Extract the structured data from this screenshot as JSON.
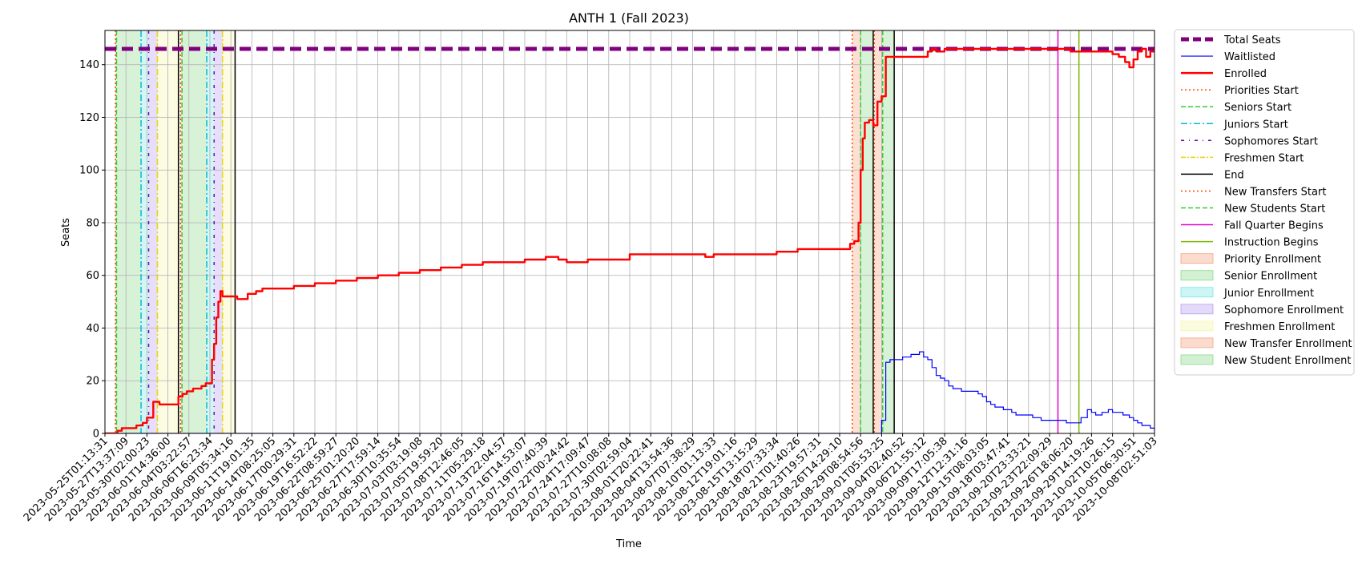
{
  "chart_data": {
    "type": "line",
    "title": "ANTH 1 (Fall 2023)",
    "xlabel": "Time",
    "ylabel": "Seats",
    "ylim": [
      0,
      153
    ],
    "yticks": [
      0,
      20,
      40,
      60,
      80,
      100,
      120,
      140
    ],
    "grid": true,
    "legend_position": "outside-right",
    "colors": {
      "total_seats": "#800080",
      "waitlisted": "#0000ff",
      "enrolled": "#ff0000",
      "priorities": "#ff4500",
      "seniors": "#32cd32",
      "juniors": "#00bcd4",
      "sophomores": "#6a0dad",
      "freshmen": "#e6d800",
      "end": "#000000",
      "fall_quarter": "#e600cc",
      "instruction": "#7cb800"
    },
    "x_tick_labels": [
      "2023-05-25T01:13:31",
      "2023-05-27T13:37:09",
      "2023-05-30T02:00:23",
      "2023-06-01T14:36:00",
      "2023-06-04T03:22:57",
      "2023-06-06T16:23:34",
      "2023-06-09T05:34:16",
      "2023-06-11T19:01:35",
      "2023-06-14T08:25:05",
      "2023-06-17T00:29:31",
      "2023-06-19T16:52:22",
      "2023-06-22T08:59:27",
      "2023-06-25T01:20:20",
      "2023-06-27T17:59:14",
      "2023-06-30T10:35:54",
      "2023-07-03T03:19:08",
      "2023-07-05T19:59:20",
      "2023-07-08T12:46:05",
      "2023-07-11T05:29:18",
      "2023-07-13T22:04:57",
      "2023-07-16T14:53:07",
      "2023-07-19T07:40:39",
      "2023-07-22T00:24:42",
      "2023-07-24T17:09:47",
      "2023-07-27T10:08:08",
      "2023-07-30T02:59:04",
      "2023-08-01T20:22:41",
      "2023-08-04T13:54:36",
      "2023-08-07T07:38:29",
      "2023-08-10T01:13:33",
      "2023-08-12T19:01:16",
      "2023-08-15T13:15:29",
      "2023-08-18T07:33:34",
      "2023-08-21T01:40:26",
      "2023-08-23T19:57:31",
      "2023-08-26T14:29:10",
      "2023-08-29T08:54:56",
      "2023-09-01T05:53:25",
      "2023-09-04T02:40:52",
      "2023-09-06T21:55:12",
      "2023-09-09T17:05:38",
      "2023-09-12T12:31:16",
      "2023-09-15T08:03:05",
      "2023-09-18T03:47:41",
      "2023-09-20T23:33:21",
      "2023-09-23T22:09:29",
      "2023-09-26T18:06:20",
      "2023-09-29T14:19:26",
      "2023-10-02T10:26:15",
      "2023-10-05T06:30:51",
      "2023-10-08T02:51:03"
    ],
    "series": [
      {
        "name": "Total Seats",
        "style": "dashed-thick",
        "x": [
          0,
          50
        ],
        "y": [
          146,
          146
        ]
      },
      {
        "name": "Waitlisted",
        "style": "step-thin",
        "x": [
          0,
          36.8,
          37.0,
          37.2,
          37.4,
          37.6,
          38.0,
          38.4,
          38.8,
          39.0,
          39.2,
          39.4,
          39.6,
          39.8,
          40.0,
          40.2,
          40.4,
          40.6,
          40.8,
          41.0,
          41.2,
          41.4,
          41.6,
          41.8,
          42.0,
          42.2,
          42.4,
          42.6,
          42.8,
          43.0,
          43.2,
          43.4,
          43.8,
          44.2,
          44.6,
          45.0,
          45.4,
          45.8,
          46.2,
          46.5,
          46.8,
          47.0,
          47.2,
          47.5,
          47.8,
          48.0,
          48.2,
          48.5,
          48.8,
          49.0,
          49.2,
          49.4,
          49.6,
          49.8,
          50.0
        ],
        "y": [
          0,
          0,
          5,
          27,
          28,
          28,
          29,
          30,
          31,
          29,
          28,
          25,
          22,
          21,
          20,
          18,
          17,
          17,
          16,
          16,
          16,
          16,
          15,
          14,
          12,
          11,
          10,
          10,
          9,
          9,
          8,
          7,
          7,
          6,
          5,
          5,
          5,
          4,
          4,
          6,
          9,
          8,
          7,
          8,
          9,
          8,
          8,
          7,
          6,
          5,
          4,
          3,
          3,
          2,
          1
        ]
      },
      {
        "name": "Enrolled",
        "style": "step-thick",
        "x": [
          0,
          0.6,
          0.8,
          1.1,
          1.5,
          1.8,
          2.0,
          2.3,
          2.4,
          2.5,
          2.6,
          2.7,
          3.0,
          3.3,
          3.5,
          3.7,
          3.9,
          4.0,
          4.1,
          4.2,
          4.4,
          4.6,
          4.8,
          5.0,
          5.1,
          5.2,
          5.3,
          5.4,
          5.5,
          5.6,
          5.75,
          5.9,
          6.0,
          6.3,
          6.8,
          7.2,
          7.5,
          8.0,
          9.0,
          10.0,
          11.0,
          12.0,
          13.0,
          14.0,
          15.0,
          16.0,
          17.0,
          18.0,
          19.0,
          20.0,
          21.0,
          21.6,
          22.0,
          23.0,
          24.0,
          25.0,
          26.0,
          27.0,
          28.0,
          28.6,
          29.0,
          30.0,
          31.0,
          32.0,
          33.0,
          34.0,
          35.0,
          35.5,
          35.7,
          35.9,
          36.0,
          36.1,
          36.2,
          36.4,
          36.6,
          36.8,
          37.0,
          37.2,
          37.4,
          37.6,
          38.0,
          38.5,
          39.0,
          39.2,
          39.4,
          39.6,
          40.0,
          41.0,
          42.0,
          43.0,
          44.0,
          45.0,
          46.0,
          47.0,
          47.5,
          48.0,
          48.3,
          48.6,
          48.8,
          49.0,
          49.2,
          49.4,
          49.6,
          49.8,
          50.0
        ],
        "y": [
          0,
          1,
          2,
          2,
          3,
          4,
          6,
          12,
          12,
          12,
          11,
          11,
          11,
          11,
          14,
          15,
          16,
          16,
          16,
          17,
          17,
          18,
          19,
          19,
          28,
          34,
          44,
          50,
          54,
          52,
          52,
          52,
          52,
          51,
          53,
          54,
          55,
          55,
          56,
          57,
          58,
          59,
          60,
          61,
          62,
          63,
          64,
          65,
          65,
          66,
          67,
          66,
          65,
          66,
          66,
          68,
          68,
          68,
          68,
          67,
          68,
          68,
          68,
          69,
          70,
          70,
          70,
          72,
          73,
          80,
          100,
          112,
          118,
          119,
          117,
          126,
          128,
          143,
          143,
          143,
          143,
          143,
          143,
          145,
          146,
          145,
          146,
          146,
          146,
          146,
          146,
          146,
          145,
          145,
          145,
          144,
          143,
          141,
          139,
          142,
          145,
          146,
          143,
          145,
          146
        ]
      }
    ],
    "vertical_lines": [
      {
        "name": "Priorities Start",
        "x": 0.5,
        "style": "dotted",
        "color": "#ff4500"
      },
      {
        "name": "Seniors Start",
        "x": 0.55,
        "style": "dashed",
        "color": "#32cd32"
      },
      {
        "name": "Juniors Start",
        "x": 1.72,
        "style": "dashdot",
        "color": "#00bcd4"
      },
      {
        "name": "Sophomores Start",
        "x": 2.08,
        "style": "dashdot-sparse",
        "color": "#6a0dad"
      },
      {
        "name": "Freshmen Start",
        "x": 2.5,
        "style": "dashdot",
        "color": "#e6d800"
      },
      {
        "name": "End",
        "x": 3.5,
        "style": "solid",
        "color": "#000000"
      },
      {
        "name": "Priorities Start",
        "x": 3.6,
        "style": "dotted",
        "color": "#ff4500"
      },
      {
        "name": "Seniors Start",
        "x": 3.67,
        "style": "dashed",
        "color": "#32cd32"
      },
      {
        "name": "Juniors Start",
        "x": 4.85,
        "style": "dashdot",
        "color": "#00bcd4"
      },
      {
        "name": "Sophomores Start",
        "x": 5.2,
        "style": "dashdot-sparse",
        "color": "#6a0dad"
      },
      {
        "name": "Freshmen Start",
        "x": 5.6,
        "style": "dashdot",
        "color": "#e6d800"
      },
      {
        "name": "End",
        "x": 6.2,
        "style": "solid",
        "color": "#000000"
      },
      {
        "name": "New Transfers Start",
        "x": 35.6,
        "style": "dotted",
        "color": "#ff4500"
      },
      {
        "name": "New Students Start",
        "x": 36.0,
        "style": "dashed",
        "color": "#32cd32"
      },
      {
        "name": "End",
        "x": 36.6,
        "style": "solid",
        "color": "#000000"
      },
      {
        "name": "New Transfers Start",
        "x": 36.65,
        "style": "dotted",
        "color": "#ff4500"
      },
      {
        "name": "New Students Start",
        "x": 37.05,
        "style": "dashed",
        "color": "#32cd32"
      },
      {
        "name": "End",
        "x": 37.6,
        "style": "solid",
        "color": "#000000"
      },
      {
        "name": "Fall Quarter Begins",
        "x": 45.4,
        "style": "solid",
        "color": "#e600cc"
      },
      {
        "name": "Instruction Begins",
        "x": 46.4,
        "style": "solid",
        "color": "#7cb800"
      }
    ],
    "shaded_regions": [
      {
        "name": "Priority Enrollment",
        "x0": 0.5,
        "x1": 0.55,
        "color": "#f4a582"
      },
      {
        "name": "Senior Enrollment",
        "x0": 0.55,
        "x1": 1.72,
        "color": "#8fd98f"
      },
      {
        "name": "Junior Enrollment",
        "x0": 1.72,
        "x1": 2.08,
        "color": "#7fe5e5"
      },
      {
        "name": "Sophomore Enrollment",
        "x0": 2.08,
        "x1": 2.5,
        "color": "#b8a0f0"
      },
      {
        "name": "Freshmen Enrollment",
        "x0": 2.5,
        "x1": 3.5,
        "color": "#f5f5b0"
      },
      {
        "name": "Priority Enrollment",
        "x0": 3.6,
        "x1": 3.67,
        "color": "#f4a582"
      },
      {
        "name": "Senior Enrollment",
        "x0": 3.67,
        "x1": 4.85,
        "color": "#8fd98f"
      },
      {
        "name": "Junior Enrollment",
        "x0": 4.85,
        "x1": 5.2,
        "color": "#7fe5e5"
      },
      {
        "name": "Sophomore Enrollment",
        "x0": 5.2,
        "x1": 5.6,
        "color": "#b8a0f0"
      },
      {
        "name": "Freshmen Enrollment",
        "x0": 5.6,
        "x1": 6.2,
        "color": "#f5f5b0"
      },
      {
        "name": "New Transfer Enrollment",
        "x0": 35.6,
        "x1": 36.0,
        "color": "#f4a582"
      },
      {
        "name": "New Student Enrollment",
        "x0": 36.0,
        "x1": 36.6,
        "color": "#8fd98f"
      },
      {
        "name": "New Transfer Enrollment",
        "x0": 36.65,
        "x1": 37.05,
        "color": "#f4a582"
      },
      {
        "name": "New Student Enrollment",
        "x0": 37.05,
        "x1": 37.6,
        "color": "#8fd98f"
      }
    ],
    "legend": [
      {
        "label": "Total Seats",
        "kind": "line",
        "color": "#800080",
        "dash": "10,5",
        "width": 5
      },
      {
        "label": "Waitlisted",
        "kind": "line",
        "color": "#0000ff",
        "dash": "",
        "width": 1.2
      },
      {
        "label": "Enrolled",
        "kind": "line",
        "color": "#ff0000",
        "dash": "",
        "width": 2.5
      },
      {
        "label": "Priorities Start",
        "kind": "line",
        "color": "#ff4500",
        "dash": "2,3",
        "width": 1.5
      },
      {
        "label": "Seniors Start",
        "kind": "line",
        "color": "#32cd32",
        "dash": "6,3",
        "width": 1.5
      },
      {
        "label": "Juniors Start",
        "kind": "line",
        "color": "#00bcd4",
        "dash": "8,3,2,3",
        "width": 1.5
      },
      {
        "label": "Sophomores Start",
        "kind": "line",
        "color": "#6a0dad",
        "dash": "4,6,1,6",
        "width": 1.5
      },
      {
        "label": "Freshmen Start",
        "kind": "line",
        "color": "#e6d800",
        "dash": "6,2,2,2",
        "width": 1.5
      },
      {
        "label": "End",
        "kind": "line",
        "color": "#000000",
        "dash": "",
        "width": 1.5
      },
      {
        "label": "New Transfers Start",
        "kind": "line",
        "color": "#ff4500",
        "dash": "2,3",
        "width": 1.5
      },
      {
        "label": "New Students Start",
        "kind": "line",
        "color": "#32cd32",
        "dash": "6,3",
        "width": 1.5
      },
      {
        "label": "Fall Quarter Begins",
        "kind": "line",
        "color": "#e600cc",
        "dash": "",
        "width": 1.5
      },
      {
        "label": "Instruction Begins",
        "kind": "line",
        "color": "#7cb800",
        "dash": "",
        "width": 1.5
      },
      {
        "label": "Priority Enrollment",
        "kind": "patch",
        "color": "#f4a582"
      },
      {
        "label": "Senior Enrollment",
        "kind": "patch",
        "color": "#8fd98f"
      },
      {
        "label": "Junior Enrollment",
        "kind": "patch",
        "color": "#7fe5e5"
      },
      {
        "label": "Sophomore Enrollment",
        "kind": "patch",
        "color": "#b8a0f0"
      },
      {
        "label": "Freshmen Enrollment",
        "kind": "patch",
        "color": "#f5f5b0"
      },
      {
        "label": "New Transfer Enrollment",
        "kind": "patch",
        "color": "#f4a582"
      },
      {
        "label": "New Student Enrollment",
        "kind": "patch",
        "color": "#8fd98f"
      }
    ]
  }
}
